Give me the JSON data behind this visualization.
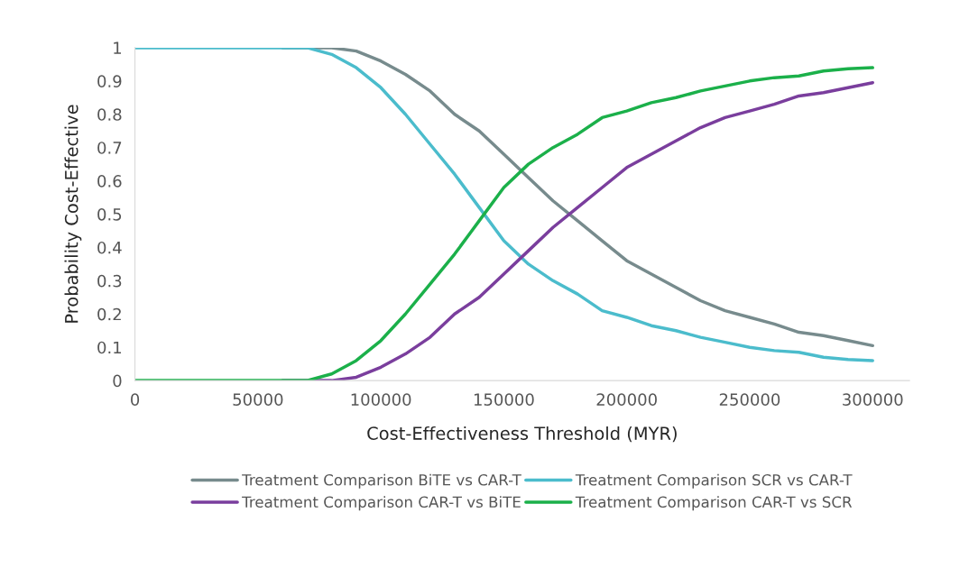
{
  "chart_data": {
    "type": "line",
    "xlabel": "Cost-Effectiveness Threshold (MYR)",
    "ylabel": "Probability Cost-Effective",
    "x": [
      0,
      10000,
      20000,
      30000,
      40000,
      50000,
      60000,
      70000,
      80000,
      90000,
      100000,
      110000,
      120000,
      130000,
      140000,
      150000,
      160000,
      170000,
      180000,
      190000,
      200000,
      210000,
      220000,
      230000,
      240000,
      250000,
      260000,
      270000,
      280000,
      290000,
      300000
    ],
    "series": [
      {
        "name": "Treatment Comparison BiTE vs CAR-T",
        "color": "#778b8d",
        "values": [
          null,
          null,
          null,
          null,
          null,
          null,
          1,
          1,
          1,
          0.99,
          0.96,
          0.92,
          0.87,
          0.8,
          0.75,
          0.68,
          0.61,
          0.54,
          0.48,
          0.42,
          0.36,
          0.32,
          0.28,
          0.24,
          0.21,
          0.19,
          0.17,
          0.145,
          0.135,
          0.12,
          0.105
        ]
      },
      {
        "name": "Treatment Comparison SCR vs CAR-T",
        "color": "#4bbccc",
        "values": [
          1,
          1,
          1,
          1,
          1,
          1,
          1,
          1,
          0.98,
          0.94,
          0.88,
          0.8,
          0.71,
          0.62,
          0.52,
          0.42,
          0.35,
          0.3,
          0.26,
          0.21,
          0.19,
          0.165,
          0.15,
          0.13,
          0.115,
          0.1,
          0.09,
          0.085,
          0.07,
          0.063,
          0.06
        ]
      },
      {
        "name": "Treatment Comparison CAR-T vs BiTE",
        "color": "#7a3e9d",
        "values": [
          null,
          null,
          null,
          null,
          null,
          null,
          0,
          0,
          0,
          0.01,
          0.04,
          0.08,
          0.13,
          0.2,
          0.25,
          0.32,
          0.39,
          0.46,
          0.52,
          0.58,
          0.64,
          0.68,
          0.72,
          0.76,
          0.79,
          0.81,
          0.83,
          0.855,
          0.865,
          0.88,
          0.895
        ]
      },
      {
        "name": "Treatment Comparison CAR-T vs SCR",
        "color": "#1bb04a",
        "values": [
          0,
          0,
          0,
          0,
          0,
          0,
          0,
          0,
          0.02,
          0.06,
          0.12,
          0.2,
          0.29,
          0.38,
          0.48,
          0.58,
          0.65,
          0.7,
          0.74,
          0.79,
          0.81,
          0.835,
          0.85,
          0.87,
          0.885,
          0.9,
          0.91,
          0.915,
          0.93,
          0.937,
          0.94
        ]
      }
    ],
    "xlim": [
      0,
      315000
    ],
    "xticks": [
      0,
      50000,
      100000,
      150000,
      200000,
      250000,
      300000
    ],
    "ylim": [
      0,
      1
    ],
    "yticks": [
      0,
      0.1,
      0.2,
      0.3,
      0.4,
      0.5,
      0.6,
      0.7,
      0.8,
      0.9,
      1
    ],
    "grid": false,
    "legend": "bottom",
    "marker": "none",
    "line_style": "solid"
  }
}
